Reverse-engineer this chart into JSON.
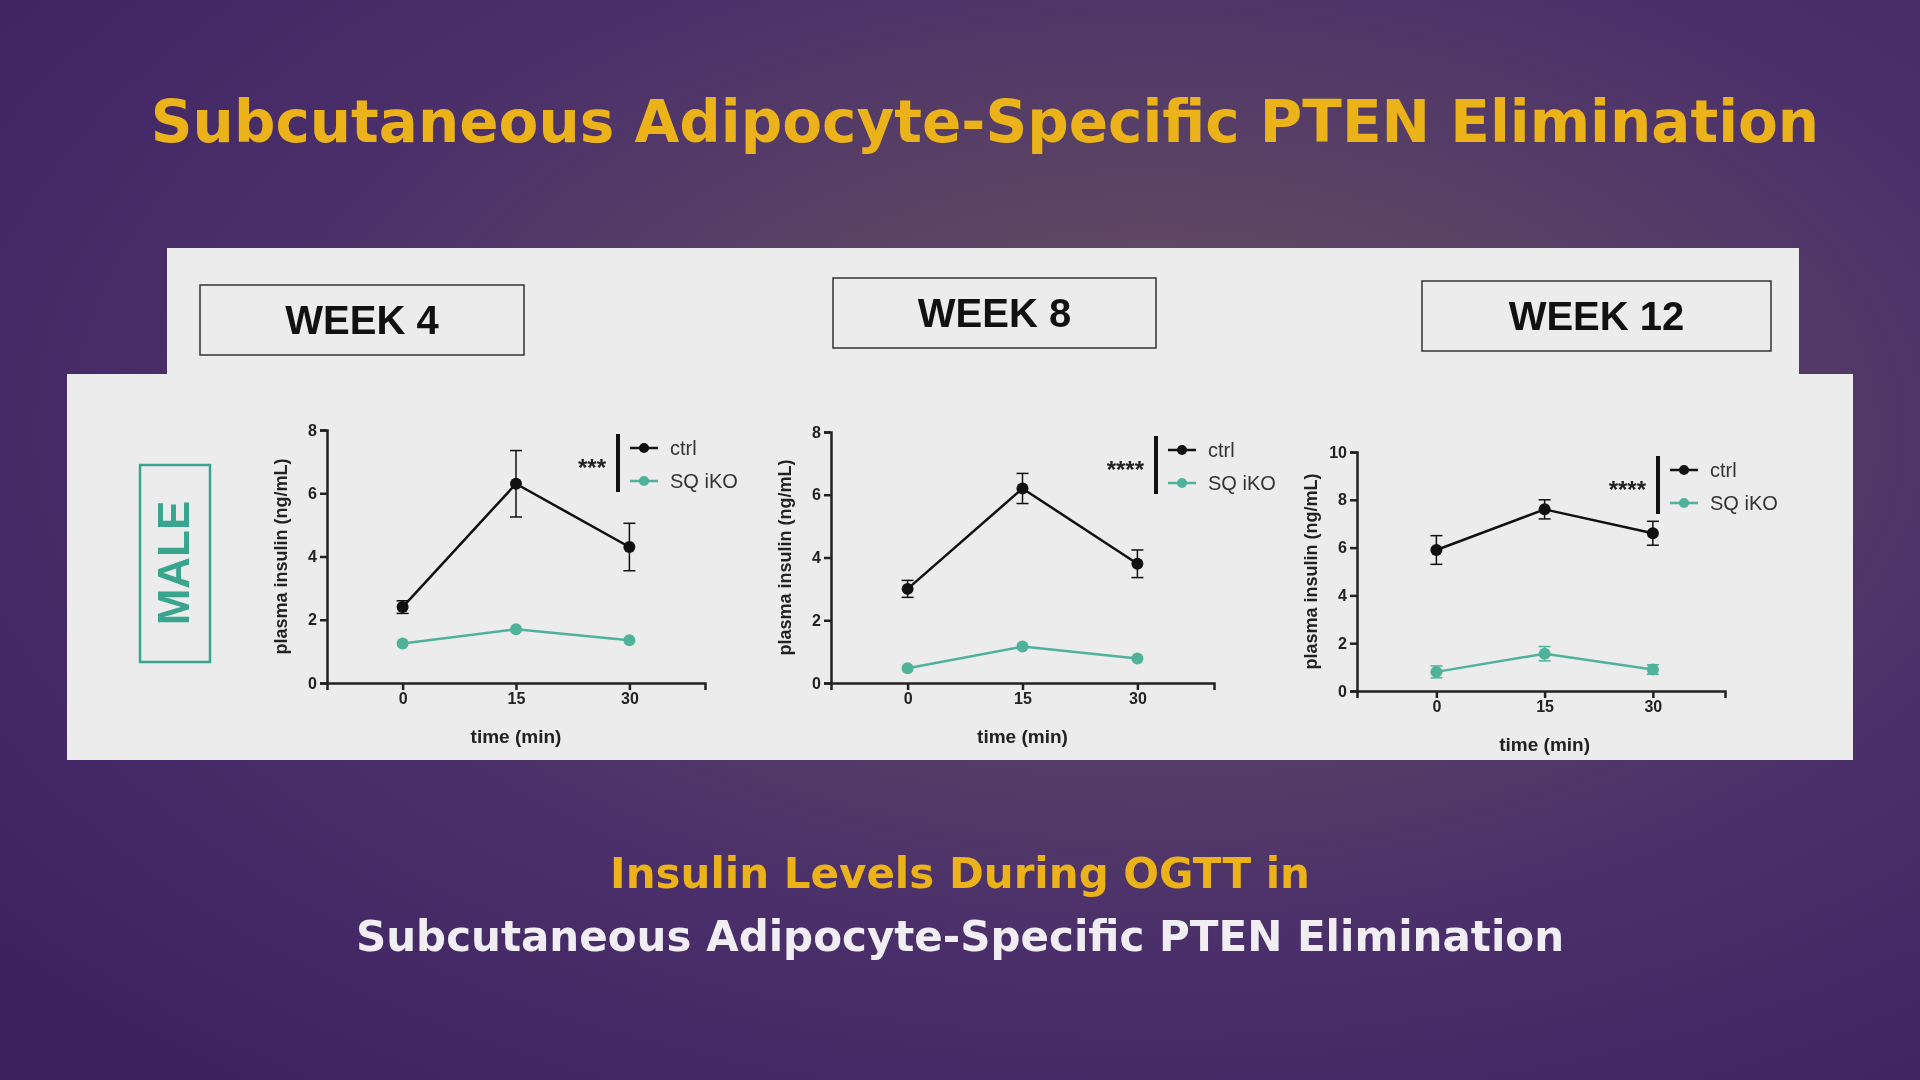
{
  "chart_data": [
    {
      "type": "line",
      "title": "WEEK 4",
      "xlabel": "time (min)",
      "ylabel": "plasma insulin (ng/mL)",
      "x": [
        0,
        15,
        30
      ],
      "xlim": [
        -10,
        40
      ],
      "xticks": [
        0,
        15,
        30
      ],
      "ylim": [
        0,
        8
      ],
      "yticks": [
        0,
        2,
        4,
        6,
        8
      ],
      "legend": "top right",
      "marker": "circle",
      "line_style": "solid",
      "grid": false,
      "series": [
        {
          "name": "ctrl",
          "color": "#111111",
          "values": [
            2.4,
            6.3,
            4.3
          ],
          "errors": [
            0.2,
            1.05,
            0.75
          ]
        },
        {
          "name": "SQ iKO",
          "color": "#4fb39b",
          "values": [
            1.25,
            1.7,
            1.35
          ]
        }
      ],
      "annotations": [
        "***",
        "Subcutaneous Adipocyte-Specific PTEN Elimination",
        "MALE",
        "Insulin Levels During OGTT in",
        "Subcutaneous Adipocyte-Specific PTEN Elimination"
      ]
    },
    {
      "type": "line",
      "title": "WEEK 8",
      "xlabel": "time (min)",
      "ylabel": "plasma insulin (ng/mL)",
      "x": [
        0,
        15,
        30
      ],
      "xlim": [
        -10,
        40
      ],
      "xticks": [
        0,
        15,
        30
      ],
      "ylim": [
        0,
        8
      ],
      "yticks": [
        0,
        2,
        4,
        6,
        8
      ],
      "legend": "top right",
      "marker": "circle",
      "line_style": "solid",
      "grid": false,
      "series": [
        {
          "name": "ctrl",
          "color": "#111111",
          "values": [
            3.0,
            6.2,
            3.8
          ],
          "errors": [
            0.27,
            0.48,
            0.44
          ]
        },
        {
          "name": "SQ iKO",
          "color": "#4fb39b",
          "values": [
            0.47,
            1.16,
            0.78
          ]
        }
      ],
      "annotations": [
        "****"
      ]
    },
    {
      "type": "line",
      "title": "WEEK 12",
      "xlabel": "time (min)",
      "ylabel": "plasma insulin (ng/mL)",
      "x": [
        0,
        15,
        30
      ],
      "xlim": [
        -11,
        40
      ],
      "xticks": [
        0,
        15,
        30
      ],
      "ylim": [
        0,
        10
      ],
      "yticks": [
        0,
        2,
        4,
        6,
        8,
        10
      ],
      "legend": "top right",
      "marker": "circle",
      "line_style": "solid",
      "grid": false,
      "series": [
        {
          "name": "ctrl",
          "color": "#111111",
          "values": [
            5.9,
            7.6,
            6.6
          ],
          "errors": [
            0.6,
            0.4,
            0.5
          ]
        },
        {
          "name": "SQ iKO",
          "color": "#4fb39b",
          "values": [
            0.8,
            1.56,
            0.9
          ],
          "errors": [
            0.25,
            0.3,
            0.2
          ]
        }
      ],
      "annotations": [
        "****"
      ]
    }
  ]
}
